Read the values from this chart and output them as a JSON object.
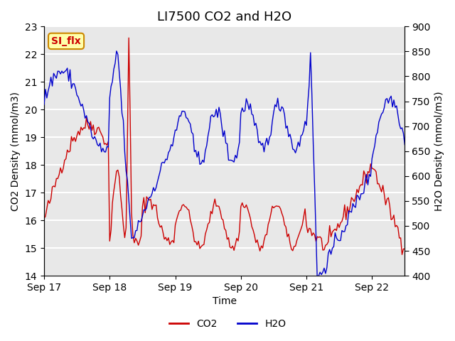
{
  "title": "LI7500 CO2 and H2O",
  "xlabel": "Time",
  "ylabel_left": "CO2 Density (mmol/m3)",
  "ylabel_right": "H2O Density (mmol/m3)",
  "co2_color": "#cc0000",
  "h2o_color": "#0000cc",
  "ylim_left": [
    14.0,
    23.0
  ],
  "ylim_right": [
    400,
    900
  ],
  "xtick_labels": [
    "Sep 17",
    "Sep 18",
    "Sep 19",
    "Sep 20",
    "Sep 21",
    "Sep 22"
  ],
  "annotation_text": "SI_flx",
  "annotation_bg": "#ffffaa",
  "annotation_border": "#cc8800",
  "background_color": "#f0f0f0",
  "plot_bg_color": "#e8e8e8",
  "grid_color": "#ffffff",
  "title_fontsize": 13,
  "axis_fontsize": 10,
  "legend_fontsize": 10
}
